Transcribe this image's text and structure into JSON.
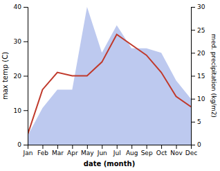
{
  "chart_data": {
    "type": "line",
    "xlabel": "date (month)",
    "ylabel": "max temp (C)",
    "y2label": "med. precipitation (kg/m2)",
    "categories": [
      "Jan",
      "Feb",
      "Mar",
      "Apr",
      "May",
      "Jun",
      "Jul",
      "Aug",
      "Sep",
      "Oct",
      "Nov",
      "Dec"
    ],
    "series": [
      {
        "type": "area",
        "axis": "y2",
        "color": "#bdc9ef",
        "values": [
          2,
          8,
          12,
          12,
          30,
          20,
          26,
          21,
          21,
          20,
          14,
          10
        ]
      },
      {
        "type": "line",
        "color": "#c0392b",
        "values": [
          3,
          16,
          21,
          20,
          20,
          24,
          32,
          29,
          26,
          21,
          14,
          11
        ]
      }
    ],
    "ylim": [
      0,
      40
    ],
    "yticks": [
      0,
      10,
      20,
      30,
      40
    ],
    "y2lim": [
      0,
      30
    ],
    "y2ticks": [
      0,
      5,
      10,
      15,
      20,
      25,
      30
    ],
    "grid": false
  }
}
